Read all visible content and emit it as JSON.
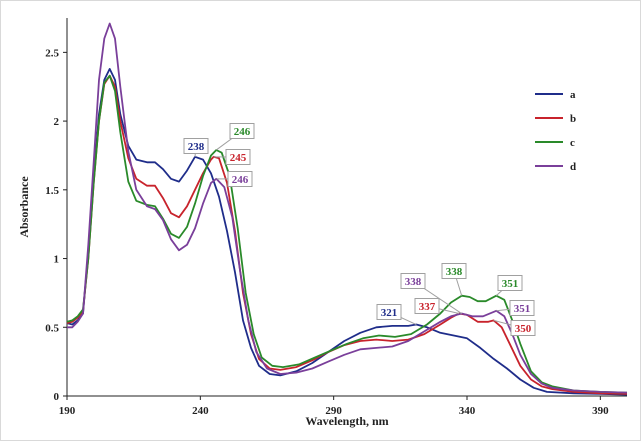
{
  "chart_data": {
    "type": "line",
    "title": "",
    "xlabel": "Wavelength, nm",
    "ylabel": "Absorbance",
    "xlim": [
      190,
      400
    ],
    "ylim": [
      0,
      2.75
    ],
    "x_ticks": [
      "190",
      "240",
      "290",
      "340",
      "390"
    ],
    "y_ticks": [
      "0",
      "0.5",
      "1",
      "1.5",
      "2",
      "2.5"
    ],
    "grid": false,
    "legend_position": "right",
    "series": [
      {
        "name": "a",
        "color": "#1f2d8a",
        "points": [
          [
            190,
            0.53
          ],
          [
            192,
            0.52
          ],
          [
            194,
            0.55
          ],
          [
            196,
            0.6
          ],
          [
            198,
            1.05
          ],
          [
            200,
            1.6
          ],
          [
            202,
            2.05
          ],
          [
            204,
            2.3
          ],
          [
            206,
            2.38
          ],
          [
            208,
            2.3
          ],
          [
            210,
            2.05
          ],
          [
            213,
            1.82
          ],
          [
            216,
            1.72
          ],
          [
            220,
            1.7
          ],
          [
            223,
            1.7
          ],
          [
            226,
            1.65
          ],
          [
            229,
            1.58
          ],
          [
            232,
            1.56
          ],
          [
            235,
            1.64
          ],
          [
            238,
            1.74
          ],
          [
            241,
            1.72
          ],
          [
            244,
            1.62
          ],
          [
            247,
            1.45
          ],
          [
            250,
            1.2
          ],
          [
            253,
            0.9
          ],
          [
            256,
            0.55
          ],
          [
            259,
            0.35
          ],
          [
            262,
            0.22
          ],
          [
            266,
            0.16
          ],
          [
            270,
            0.15
          ],
          [
            276,
            0.18
          ],
          [
            282,
            0.24
          ],
          [
            288,
            0.32
          ],
          [
            294,
            0.4
          ],
          [
            300,
            0.46
          ],
          [
            306,
            0.5
          ],
          [
            312,
            0.51
          ],
          [
            318,
            0.51
          ],
          [
            321,
            0.52
          ],
          [
            325,
            0.5
          ],
          [
            330,
            0.46
          ],
          [
            335,
            0.44
          ],
          [
            340,
            0.42
          ],
          [
            345,
            0.35
          ],
          [
            350,
            0.27
          ],
          [
            355,
            0.2
          ],
          [
            360,
            0.12
          ],
          [
            365,
            0.06
          ],
          [
            370,
            0.03
          ],
          [
            380,
            0.02
          ],
          [
            390,
            0.015
          ],
          [
            400,
            0.01
          ]
        ]
      },
      {
        "name": "b",
        "color": "#c8232c",
        "points": [
          [
            190,
            0.53
          ],
          [
            192,
            0.54
          ],
          [
            194,
            0.57
          ],
          [
            196,
            0.62
          ],
          [
            198,
            1.0
          ],
          [
            200,
            1.55
          ],
          [
            202,
            2.0
          ],
          [
            204,
            2.27
          ],
          [
            206,
            2.33
          ],
          [
            208,
            2.25
          ],
          [
            210,
            2.0
          ],
          [
            213,
            1.73
          ],
          [
            216,
            1.58
          ],
          [
            220,
            1.53
          ],
          [
            223,
            1.53
          ],
          [
            226,
            1.44
          ],
          [
            229,
            1.33
          ],
          [
            232,
            1.3
          ],
          [
            235,
            1.38
          ],
          [
            238,
            1.5
          ],
          [
            241,
            1.62
          ],
          [
            244,
            1.72
          ],
          [
            245,
            1.74
          ],
          [
            247,
            1.73
          ],
          [
            250,
            1.55
          ],
          [
            253,
            1.2
          ],
          [
            256,
            0.75
          ],
          [
            259,
            0.45
          ],
          [
            262,
            0.27
          ],
          [
            266,
            0.2
          ],
          [
            270,
            0.19
          ],
          [
            276,
            0.21
          ],
          [
            282,
            0.26
          ],
          [
            288,
            0.32
          ],
          [
            294,
            0.37
          ],
          [
            300,
            0.4
          ],
          [
            306,
            0.41
          ],
          [
            312,
            0.4
          ],
          [
            318,
            0.41
          ],
          [
            324,
            0.45
          ],
          [
            330,
            0.52
          ],
          [
            334,
            0.57
          ],
          [
            337,
            0.6
          ],
          [
            340,
            0.59
          ],
          [
            344,
            0.54
          ],
          [
            348,
            0.54
          ],
          [
            350,
            0.55
          ],
          [
            353,
            0.5
          ],
          [
            356,
            0.38
          ],
          [
            360,
            0.22
          ],
          [
            364,
            0.12
          ],
          [
            368,
            0.07
          ],
          [
            372,
            0.05
          ],
          [
            380,
            0.03
          ],
          [
            390,
            0.02
          ],
          [
            400,
            0.015
          ]
        ]
      },
      {
        "name": "c",
        "color": "#2a8a2a",
        "points": [
          [
            190,
            0.54
          ],
          [
            192,
            0.55
          ],
          [
            194,
            0.58
          ],
          [
            196,
            0.63
          ],
          [
            198,
            1.0
          ],
          [
            200,
            1.55
          ],
          [
            202,
            2.0
          ],
          [
            204,
            2.28
          ],
          [
            206,
            2.33
          ],
          [
            208,
            2.22
          ],
          [
            210,
            1.92
          ],
          [
            213,
            1.56
          ],
          [
            216,
            1.42
          ],
          [
            220,
            1.39
          ],
          [
            223,
            1.38
          ],
          [
            226,
            1.29
          ],
          [
            229,
            1.18
          ],
          [
            232,
            1.15
          ],
          [
            235,
            1.23
          ],
          [
            238,
            1.4
          ],
          [
            241,
            1.6
          ],
          [
            244,
            1.75
          ],
          [
            246,
            1.79
          ],
          [
            248,
            1.77
          ],
          [
            251,
            1.6
          ],
          [
            254,
            1.22
          ],
          [
            257,
            0.75
          ],
          [
            260,
            0.45
          ],
          [
            263,
            0.28
          ],
          [
            267,
            0.22
          ],
          [
            271,
            0.21
          ],
          [
            277,
            0.23
          ],
          [
            283,
            0.28
          ],
          [
            289,
            0.33
          ],
          [
            295,
            0.38
          ],
          [
            301,
            0.42
          ],
          [
            307,
            0.44
          ],
          [
            313,
            0.43
          ],
          [
            319,
            0.45
          ],
          [
            325,
            0.52
          ],
          [
            330,
            0.6
          ],
          [
            334,
            0.68
          ],
          [
            338,
            0.73
          ],
          [
            341,
            0.72
          ],
          [
            344,
            0.69
          ],
          [
            347,
            0.69
          ],
          [
            351,
            0.73
          ],
          [
            354,
            0.7
          ],
          [
            357,
            0.55
          ],
          [
            360,
            0.38
          ],
          [
            364,
            0.18
          ],
          [
            368,
            0.1
          ],
          [
            372,
            0.07
          ],
          [
            380,
            0.04
          ],
          [
            390,
            0.03
          ],
          [
            400,
            0.025
          ]
        ]
      },
      {
        "name": "d",
        "color": "#7a3f9a",
        "points": [
          [
            190,
            0.5
          ],
          [
            192,
            0.5
          ],
          [
            194,
            0.54
          ],
          [
            196,
            0.6
          ],
          [
            198,
            1.1
          ],
          [
            200,
            1.7
          ],
          [
            202,
            2.3
          ],
          [
            204,
            2.6
          ],
          [
            206,
            2.71
          ],
          [
            208,
            2.6
          ],
          [
            210,
            2.25
          ],
          [
            213,
            1.78
          ],
          [
            216,
            1.5
          ],
          [
            220,
            1.38
          ],
          [
            223,
            1.36
          ],
          [
            226,
            1.28
          ],
          [
            229,
            1.14
          ],
          [
            232,
            1.06
          ],
          [
            235,
            1.1
          ],
          [
            238,
            1.22
          ],
          [
            241,
            1.4
          ],
          [
            244,
            1.55
          ],
          [
            246,
            1.58
          ],
          [
            249,
            1.52
          ],
          [
            252,
            1.3
          ],
          [
            255,
            0.9
          ],
          [
            258,
            0.55
          ],
          [
            261,
            0.32
          ],
          [
            265,
            0.2
          ],
          [
            270,
            0.16
          ],
          [
            276,
            0.17
          ],
          [
            282,
            0.2
          ],
          [
            288,
            0.25
          ],
          [
            294,
            0.3
          ],
          [
            300,
            0.34
          ],
          [
            306,
            0.35
          ],
          [
            312,
            0.36
          ],
          [
            318,
            0.4
          ],
          [
            324,
            0.47
          ],
          [
            330,
            0.54
          ],
          [
            334,
            0.58
          ],
          [
            338,
            0.6
          ],
          [
            342,
            0.58
          ],
          [
            346,
            0.58
          ],
          [
            351,
            0.62
          ],
          [
            354,
            0.58
          ],
          [
            357,
            0.45
          ],
          [
            360,
            0.3
          ],
          [
            364,
            0.16
          ],
          [
            368,
            0.09
          ],
          [
            372,
            0.06
          ],
          [
            380,
            0.04
          ],
          [
            390,
            0.03
          ],
          [
            400,
            0.025
          ]
        ]
      }
    ],
    "annotations": [
      {
        "label": "238",
        "series": "a",
        "x": 238,
        "y": 1.74,
        "color": "#1f2d8a"
      },
      {
        "label": "246",
        "series": "c",
        "x": 246,
        "y": 1.79,
        "color": "#2a8a2a"
      },
      {
        "label": "245",
        "series": "b",
        "x": 245,
        "y": 1.74,
        "color": "#c8232c"
      },
      {
        "label": "246",
        "series": "d",
        "x": 246,
        "y": 1.58,
        "color": "#7a3f9a"
      },
      {
        "label": "338",
        "series": "d",
        "x": 338,
        "y": 0.6,
        "color": "#7a3f9a"
      },
      {
        "label": "338",
        "series": "c",
        "x": 338,
        "y": 0.73,
        "color": "#2a8a2a"
      },
      {
        "label": "351",
        "series": "c",
        "x": 351,
        "y": 0.73,
        "color": "#2a8a2a"
      },
      {
        "label": "321",
        "series": "a",
        "x": 321,
        "y": 0.52,
        "color": "#1f2d8a"
      },
      {
        "label": "337",
        "series": "b",
        "x": 337,
        "y": 0.6,
        "color": "#c8232c"
      },
      {
        "label": "351",
        "series": "d",
        "x": 351,
        "y": 0.62,
        "color": "#7a3f9a"
      },
      {
        "label": "350",
        "series": "b",
        "x": 350,
        "y": 0.55,
        "color": "#c8232c"
      }
    ]
  }
}
